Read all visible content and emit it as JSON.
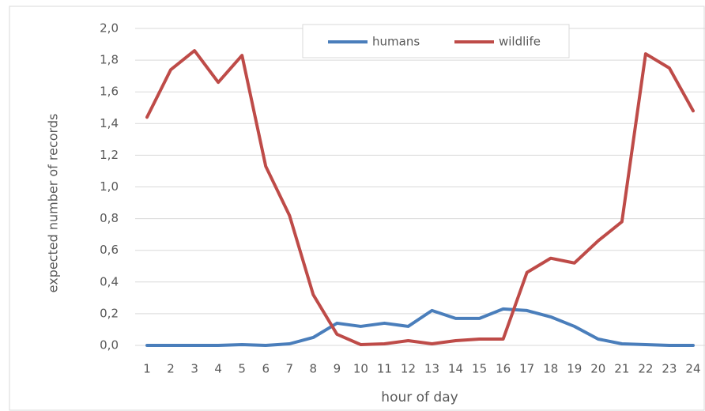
{
  "chart_data": {
    "type": "line",
    "xlabel": "hour of day",
    "ylabel": "expected number of records",
    "categories": [
      "1",
      "2",
      "3",
      "4",
      "5",
      "6",
      "7",
      "8",
      "9",
      "10",
      "11",
      "12",
      "13",
      "14",
      "15",
      "16",
      "17",
      "18",
      "19",
      "20",
      "21",
      "22",
      "23",
      "24"
    ],
    "series": [
      {
        "name": "humans",
        "color": "#4a7ebb",
        "values": [
          0,
          0,
          0,
          0,
          0.005,
          0,
          0.01,
          0.05,
          0.14,
          0.12,
          0.14,
          0.12,
          0.22,
          0.17,
          0.17,
          0.23,
          0.22,
          0.18,
          0.12,
          0.04,
          0.01,
          0.005,
          0,
          0
        ]
      },
      {
        "name": "wildlife",
        "color": "#be4b48",
        "values": [
          1.44,
          1.74,
          1.86,
          1.66,
          1.83,
          1.13,
          0.82,
          0.32,
          0.07,
          0.005,
          0.01,
          0.03,
          0.01,
          0.03,
          0.04,
          0.04,
          0.46,
          0.55,
          0.52,
          0.66,
          0.78,
          1.84,
          1.75,
          1.48
        ]
      }
    ],
    "ylim": [
      0,
      2
    ],
    "yticks": [
      {
        "value": 0,
        "label": "0,0"
      },
      {
        "value": 0.2,
        "label": "0,2"
      },
      {
        "value": 0.4,
        "label": "0,4"
      },
      {
        "value": 0.6,
        "label": "0,6"
      },
      {
        "value": 0.8,
        "label": "0,8"
      },
      {
        "value": 1,
        "label": "1,0"
      },
      {
        "value": 1.2,
        "label": "1,2"
      },
      {
        "value": 1.4,
        "label": "1,4"
      },
      {
        "value": 1.6,
        "label": "1,6"
      },
      {
        "value": 1.8,
        "label": "1,8"
      },
      {
        "value": 2,
        "label": "2,0"
      }
    ],
    "grid": true,
    "legend": "top"
  }
}
